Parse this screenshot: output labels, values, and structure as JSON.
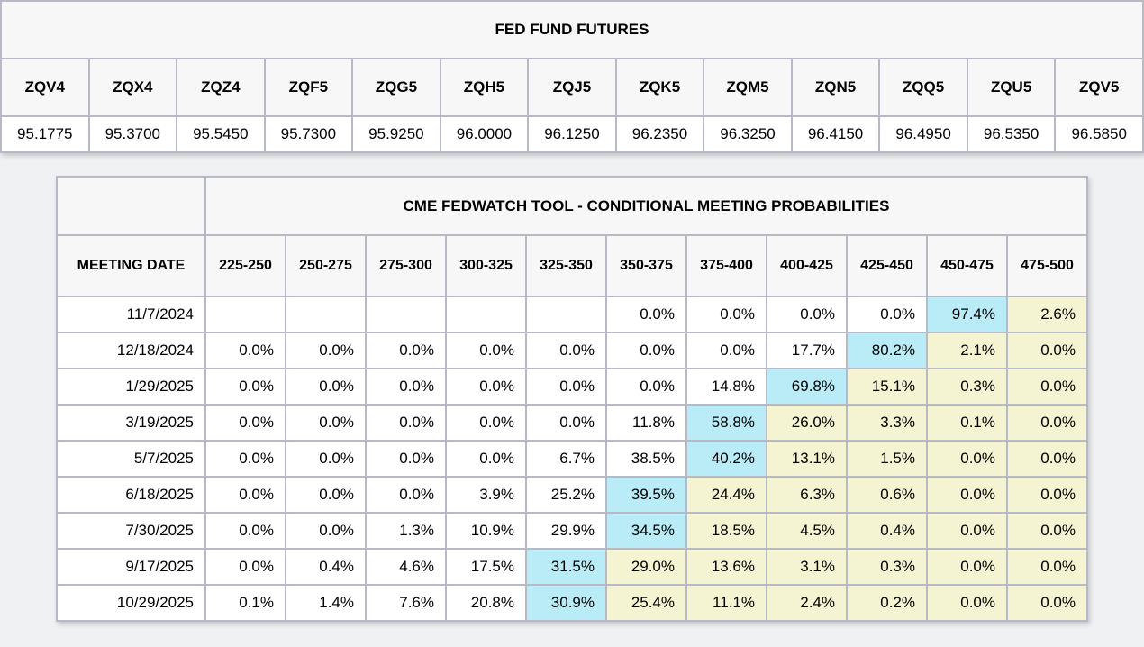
{
  "colors": {
    "page_background": "#f0f1f3",
    "header_background": "#f7f7f8",
    "cell_background": "#ffffff",
    "highlight_cyan": "#b9ecf6",
    "highlight_yellow": "#f4f4d3",
    "border": "#b7bac6"
  },
  "futures_table": {
    "title": "FED FUND FUTURES",
    "columns": [
      "ZQV4",
      "ZQX4",
      "ZQZ4",
      "ZQF5",
      "ZQG5",
      "ZQH5",
      "ZQJ5",
      "ZQK5",
      "ZQM5",
      "ZQN5",
      "ZQQ5",
      "ZQU5",
      "ZQV5"
    ],
    "values": [
      "95.1775",
      "95.3700",
      "95.5450",
      "95.7300",
      "95.9250",
      "96.0000",
      "96.1250",
      "96.2350",
      "96.3250",
      "96.4150",
      "96.4950",
      "96.5350",
      "96.5850"
    ]
  },
  "fedwatch_table": {
    "title": "CME FEDWATCH TOOL - CONDITIONAL MEETING PROBABILITIES",
    "date_column_header": "MEETING DATE",
    "rate_columns": [
      "225-250",
      "250-275",
      "275-300",
      "300-325",
      "325-350",
      "350-375",
      "375-400",
      "400-425",
      "425-450",
      "450-475",
      "475-500"
    ],
    "rows": [
      {
        "date": "11/7/2024",
        "cells": [
          {
            "value": "",
            "highlight": "none"
          },
          {
            "value": "",
            "highlight": "none"
          },
          {
            "value": "",
            "highlight": "none"
          },
          {
            "value": "",
            "highlight": "none"
          },
          {
            "value": "",
            "highlight": "none"
          },
          {
            "value": "0.0%",
            "highlight": "none"
          },
          {
            "value": "0.0%",
            "highlight": "none"
          },
          {
            "value": "0.0%",
            "highlight": "none"
          },
          {
            "value": "0.0%",
            "highlight": "none"
          },
          {
            "value": "97.4%",
            "highlight": "cyan"
          },
          {
            "value": "2.6%",
            "highlight": "yellow"
          }
        ]
      },
      {
        "date": "12/18/2024",
        "cells": [
          {
            "value": "0.0%",
            "highlight": "none"
          },
          {
            "value": "0.0%",
            "highlight": "none"
          },
          {
            "value": "0.0%",
            "highlight": "none"
          },
          {
            "value": "0.0%",
            "highlight": "none"
          },
          {
            "value": "0.0%",
            "highlight": "none"
          },
          {
            "value": "0.0%",
            "highlight": "none"
          },
          {
            "value": "0.0%",
            "highlight": "none"
          },
          {
            "value": "17.7%",
            "highlight": "none"
          },
          {
            "value": "80.2%",
            "highlight": "cyan"
          },
          {
            "value": "2.1%",
            "highlight": "yellow"
          },
          {
            "value": "0.0%",
            "highlight": "yellow"
          }
        ]
      },
      {
        "date": "1/29/2025",
        "cells": [
          {
            "value": "0.0%",
            "highlight": "none"
          },
          {
            "value": "0.0%",
            "highlight": "none"
          },
          {
            "value": "0.0%",
            "highlight": "none"
          },
          {
            "value": "0.0%",
            "highlight": "none"
          },
          {
            "value": "0.0%",
            "highlight": "none"
          },
          {
            "value": "0.0%",
            "highlight": "none"
          },
          {
            "value": "14.8%",
            "highlight": "none"
          },
          {
            "value": "69.8%",
            "highlight": "cyan"
          },
          {
            "value": "15.1%",
            "highlight": "yellow"
          },
          {
            "value": "0.3%",
            "highlight": "yellow"
          },
          {
            "value": "0.0%",
            "highlight": "yellow"
          }
        ]
      },
      {
        "date": "3/19/2025",
        "cells": [
          {
            "value": "0.0%",
            "highlight": "none"
          },
          {
            "value": "0.0%",
            "highlight": "none"
          },
          {
            "value": "0.0%",
            "highlight": "none"
          },
          {
            "value": "0.0%",
            "highlight": "none"
          },
          {
            "value": "0.0%",
            "highlight": "none"
          },
          {
            "value": "11.8%",
            "highlight": "none"
          },
          {
            "value": "58.8%",
            "highlight": "cyan"
          },
          {
            "value": "26.0%",
            "highlight": "yellow"
          },
          {
            "value": "3.3%",
            "highlight": "yellow"
          },
          {
            "value": "0.1%",
            "highlight": "yellow"
          },
          {
            "value": "0.0%",
            "highlight": "yellow"
          }
        ]
      },
      {
        "date": "5/7/2025",
        "cells": [
          {
            "value": "0.0%",
            "highlight": "none"
          },
          {
            "value": "0.0%",
            "highlight": "none"
          },
          {
            "value": "0.0%",
            "highlight": "none"
          },
          {
            "value": "0.0%",
            "highlight": "none"
          },
          {
            "value": "6.7%",
            "highlight": "none"
          },
          {
            "value": "38.5%",
            "highlight": "none"
          },
          {
            "value": "40.2%",
            "highlight": "cyan"
          },
          {
            "value": "13.1%",
            "highlight": "yellow"
          },
          {
            "value": "1.5%",
            "highlight": "yellow"
          },
          {
            "value": "0.0%",
            "highlight": "yellow"
          },
          {
            "value": "0.0%",
            "highlight": "yellow"
          }
        ]
      },
      {
        "date": "6/18/2025",
        "cells": [
          {
            "value": "0.0%",
            "highlight": "none"
          },
          {
            "value": "0.0%",
            "highlight": "none"
          },
          {
            "value": "0.0%",
            "highlight": "none"
          },
          {
            "value": "3.9%",
            "highlight": "none"
          },
          {
            "value": "25.2%",
            "highlight": "none"
          },
          {
            "value": "39.5%",
            "highlight": "cyan"
          },
          {
            "value": "24.4%",
            "highlight": "yellow"
          },
          {
            "value": "6.3%",
            "highlight": "yellow"
          },
          {
            "value": "0.6%",
            "highlight": "yellow"
          },
          {
            "value": "0.0%",
            "highlight": "yellow"
          },
          {
            "value": "0.0%",
            "highlight": "yellow"
          }
        ]
      },
      {
        "date": "7/30/2025",
        "cells": [
          {
            "value": "0.0%",
            "highlight": "none"
          },
          {
            "value": "0.0%",
            "highlight": "none"
          },
          {
            "value": "1.3%",
            "highlight": "none"
          },
          {
            "value": "10.9%",
            "highlight": "none"
          },
          {
            "value": "29.9%",
            "highlight": "none"
          },
          {
            "value": "34.5%",
            "highlight": "cyan"
          },
          {
            "value": "18.5%",
            "highlight": "yellow"
          },
          {
            "value": "4.5%",
            "highlight": "yellow"
          },
          {
            "value": "0.4%",
            "highlight": "yellow"
          },
          {
            "value": "0.0%",
            "highlight": "yellow"
          },
          {
            "value": "0.0%",
            "highlight": "yellow"
          }
        ]
      },
      {
        "date": "9/17/2025",
        "cells": [
          {
            "value": "0.0%",
            "highlight": "none"
          },
          {
            "value": "0.4%",
            "highlight": "none"
          },
          {
            "value": "4.6%",
            "highlight": "none"
          },
          {
            "value": "17.5%",
            "highlight": "none"
          },
          {
            "value": "31.5%",
            "highlight": "cyan"
          },
          {
            "value": "29.0%",
            "highlight": "yellow"
          },
          {
            "value": "13.6%",
            "highlight": "yellow"
          },
          {
            "value": "3.1%",
            "highlight": "yellow"
          },
          {
            "value": "0.3%",
            "highlight": "yellow"
          },
          {
            "value": "0.0%",
            "highlight": "yellow"
          },
          {
            "value": "0.0%",
            "highlight": "yellow"
          }
        ]
      },
      {
        "date": "10/29/2025",
        "cells": [
          {
            "value": "0.1%",
            "highlight": "none"
          },
          {
            "value": "1.4%",
            "highlight": "none"
          },
          {
            "value": "7.6%",
            "highlight": "none"
          },
          {
            "value": "20.8%",
            "highlight": "none"
          },
          {
            "value": "30.9%",
            "highlight": "cyan"
          },
          {
            "value": "25.4%",
            "highlight": "yellow"
          },
          {
            "value": "11.1%",
            "highlight": "yellow"
          },
          {
            "value": "2.4%",
            "highlight": "yellow"
          },
          {
            "value": "0.2%",
            "highlight": "yellow"
          },
          {
            "value": "0.0%",
            "highlight": "yellow"
          },
          {
            "value": "0.0%",
            "highlight": "yellow"
          }
        ]
      }
    ]
  }
}
